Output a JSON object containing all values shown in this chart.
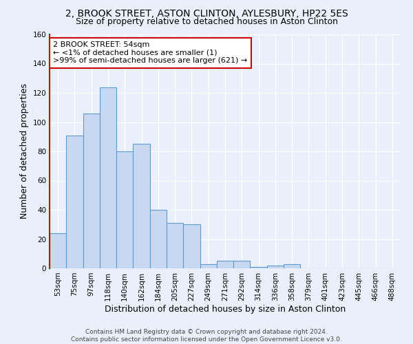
{
  "title_line1": "2, BROOK STREET, ASTON CLINTON, AYLESBURY, HP22 5ES",
  "title_line2": "Size of property relative to detached houses in Aston Clinton",
  "xlabel": "Distribution of detached houses by size in Aston Clinton",
  "ylabel": "Number of detached properties",
  "categories": [
    "53sqm",
    "75sqm",
    "97sqm",
    "118sqm",
    "140sqm",
    "162sqm",
    "184sqm",
    "205sqm",
    "227sqm",
    "249sqm",
    "271sqm",
    "292sqm",
    "314sqm",
    "336sqm",
    "358sqm",
    "379sqm",
    "401sqm",
    "423sqm",
    "445sqm",
    "466sqm",
    "488sqm"
  ],
  "values": [
    24,
    91,
    106,
    124,
    80,
    85,
    40,
    31,
    30,
    3,
    5,
    5,
    1,
    2,
    3,
    0,
    0,
    0,
    0,
    0,
    0
  ],
  "bar_color": "#c8d8f0",
  "bar_edge_color": "#5b9bd5",
  "highlight_color": "#cc0000",
  "annotation_line1": "2 BROOK STREET: 54sqm",
  "annotation_line2": "← <1% of detached houses are smaller (1)",
  "annotation_line3": ">99% of semi-detached houses are larger (621) →",
  "annotation_box_color": "#ffffff",
  "annotation_box_edge": "#cc0000",
  "ylim": [
    0,
    160
  ],
  "yticks": [
    0,
    20,
    40,
    60,
    80,
    100,
    120,
    140,
    160
  ],
  "background_color": "#eaf0fb",
  "grid_color": "#ffffff",
  "footer_line1": "Contains HM Land Registry data © Crown copyright and database right 2024.",
  "footer_line2": "Contains public sector information licensed under the Open Government Licence v3.0.",
  "title_fontsize": 10,
  "subtitle_fontsize": 9,
  "axis_label_fontsize": 9,
  "tick_fontsize": 7.5,
  "annotation_fontsize": 8,
  "footer_fontsize": 6.5
}
